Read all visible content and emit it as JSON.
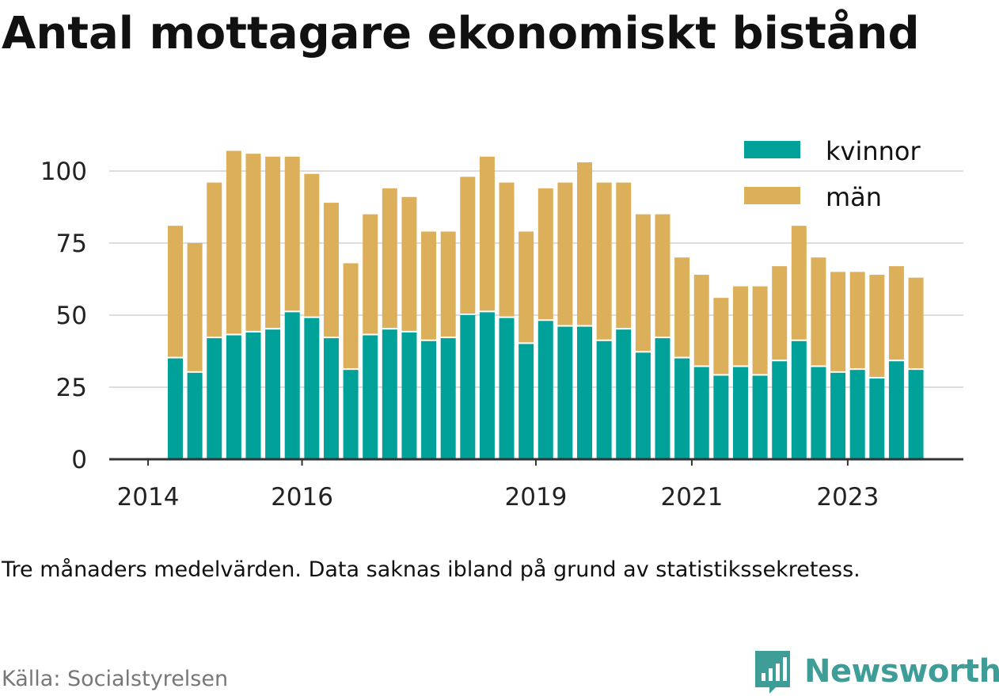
{
  "title": "Antal mottagare ekonomiskt bistånd",
  "note": "Tre månaders medelvärden. Data saknas ibland på grund av statistikssekretess.",
  "source": "Källa: Socialstyrelsen",
  "brand": {
    "name": "Newsworthy",
    "icon": "bar-chart-badge-icon",
    "color": "#3f9d97"
  },
  "colors": {
    "kvinnor": "#00a199",
    "man": "#dcaf5b",
    "grid": "#dddddd",
    "axis": "#333333"
  },
  "chart_data": {
    "type": "bar",
    "stacked": true,
    "categories": [
      "2014-Q2",
      "2014-Q3",
      "2014-Q4",
      "2015-Q1",
      "2015-Q2",
      "2015-Q3",
      "2015-Q4",
      "2016-Q1",
      "2016-Q2",
      "2016-Q3",
      "2016-Q4",
      "2017-Q1",
      "2017-Q2",
      "2017-Q3",
      "2017-Q4",
      "2018-Q1",
      "2018-Q2",
      "2018-Q3",
      "2018-Q4",
      "2019-Q1",
      "2019-Q2",
      "2019-Q3",
      "2019-Q4",
      "2020-Q1",
      "2020-Q2",
      "2020-Q3",
      "2020-Q4",
      "2021-Q1",
      "2021-Q2",
      "2021-Q3",
      "2021-Q4",
      "2022-Q1",
      "2022-Q2",
      "2022-Q3",
      "2022-Q4",
      "2023-Q1",
      "2023-Q2",
      "2023-Q3",
      "2023-Q4"
    ],
    "series": [
      {
        "name": "kvinnor",
        "values": [
          35,
          30,
          42,
          43,
          44,
          45,
          51,
          49,
          42,
          31,
          43,
          45,
          44,
          41,
          42,
          50,
          51,
          49,
          40,
          48,
          46,
          46,
          41,
          45,
          37,
          42,
          35,
          32,
          29,
          32,
          29,
          34,
          41,
          32,
          30,
          31,
          28,
          34,
          31
        ]
      },
      {
        "name": "män",
        "values": [
          46,
          45,
          54,
          64,
          62,
          60,
          54,
          50,
          47,
          37,
          42,
          49,
          47,
          38,
          37,
          48,
          54,
          47,
          39,
          46,
          50,
          57,
          55,
          51,
          48,
          43,
          35,
          32,
          27,
          28,
          31,
          33,
          40,
          38,
          35,
          34,
          36,
          33,
          32
        ]
      }
    ],
    "ylim": [
      0,
      110
    ],
    "yticks": [
      0,
      25,
      50,
      75,
      100
    ],
    "xticks": [
      "2014",
      "2016",
      "2019",
      "2021",
      "2023"
    ],
    "xlabel": "",
    "ylabel": "",
    "grid": true,
    "legend_position": "top-right"
  }
}
